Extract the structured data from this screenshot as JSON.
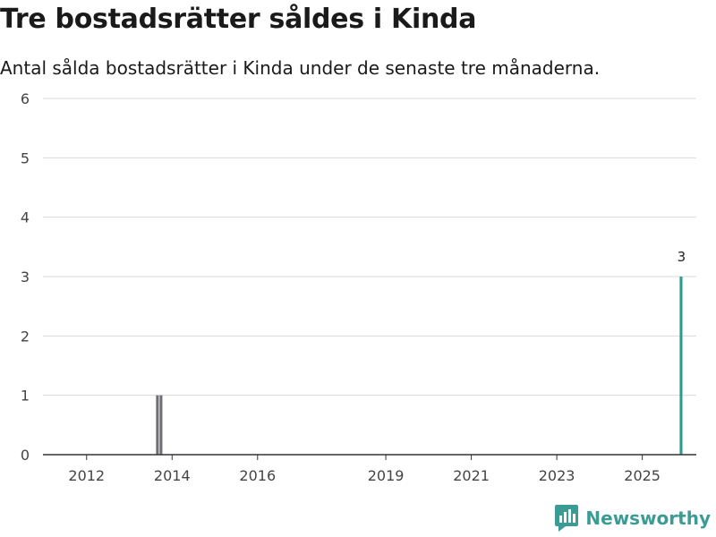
{
  "title": "Tre bostadsrätter såldes i Kinda",
  "subtitle": "Antal sålda bostadsrätter i Kinda under de senaste tre månaderna.",
  "brand": "Newsworthy",
  "colors": {
    "bar": "#6e6e75",
    "highlight": "#2a9d8f",
    "grid": "#d9d9d9",
    "axis": "#333333",
    "brand": "#3a9c94"
  },
  "chart_data": {
    "type": "bar",
    "title": "Tre bostadsrätter såldes i Kinda",
    "xlabel": "",
    "ylabel": "",
    "ylim": [
      0,
      6
    ],
    "yticks": [
      0,
      1,
      2,
      3,
      4,
      5,
      6
    ],
    "xticks": [
      {
        "label": "2012",
        "month": "2012-01"
      },
      {
        "label": "2014",
        "month": "2014-01"
      },
      {
        "label": "2016",
        "month": "2016-01"
      },
      {
        "label": "2019",
        "month": "2019-01"
      },
      {
        "label": "2021",
        "month": "2021-01"
      },
      {
        "label": "2023",
        "month": "2023-01"
      },
      {
        "label": "2025",
        "month": "2025-01"
      }
    ],
    "start_month": "2011-01",
    "values": [
      0,
      0,
      0,
      0,
      0,
      0,
      0,
      0,
      0,
      0,
      0,
      0,
      0,
      0,
      0,
      0,
      0,
      0,
      0,
      0,
      0,
      0,
      0,
      0,
      0,
      0,
      0,
      0,
      0,
      0,
      0,
      0,
      1,
      1,
      0,
      0,
      0,
      0,
      0,
      0,
      0,
      0,
      0,
      0,
      0,
      0,
      0,
      0,
      0,
      0,
      0,
      0,
      0,
      0,
      0,
      0,
      0,
      0,
      0,
      0,
      0,
      0,
      0,
      0,
      0,
      0,
      0,
      0,
      0,
      0,
      0,
      0,
      0,
      0,
      0,
      0,
      0,
      0,
      0,
      0,
      0,
      0,
      0,
      0,
      0,
      0,
      0,
      0,
      0,
      0,
      0,
      0,
      0,
      0,
      0,
      0,
      0,
      0,
      0,
      0,
      0,
      0,
      0,
      0,
      0,
      0,
      0,
      0,
      0,
      0,
      0,
      0,
      0,
      0,
      0,
      0,
      0,
      0,
      0,
      0,
      0,
      0,
      0,
      0,
      0,
      0,
      0,
      0,
      0,
      0,
      0,
      0,
      0,
      0,
      0,
      0,
      0,
      0,
      0,
      0,
      0,
      0,
      0,
      0,
      0,
      0,
      0,
      0,
      0,
      0,
      0,
      0,
      0,
      0,
      0,
      0,
      0,
      0,
      0,
      0,
      0,
      0,
      0,
      0,
      0,
      0,
      0,
      0,
      0,
      0,
      0,
      0,
      0,
      0,
      0,
      0,
      0,
      0,
      0,
      3
    ],
    "highlight_last": true,
    "annotation": {
      "text": "3",
      "target": "last"
    }
  }
}
